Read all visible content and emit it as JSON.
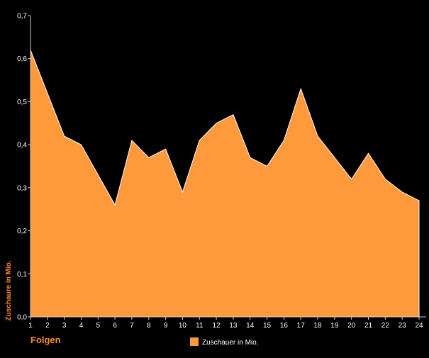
{
  "chart_data": {
    "type": "area",
    "categories": [
      "1",
      "2",
      "3",
      "4",
      "5",
      "6",
      "7",
      "8",
      "9",
      "10",
      "11",
      "12",
      "13",
      "14",
      "15",
      "16",
      "17",
      "18",
      "19",
      "20",
      "21",
      "22",
      "23",
      "24"
    ],
    "series": [
      {
        "name": "Zuschauer in Mio.",
        "color": "#ff9a3c",
        "values": [
          0.62,
          0.52,
          0.42,
          0.4,
          0.33,
          0.26,
          0.41,
          0.37,
          0.39,
          0.29,
          0.41,
          0.45,
          0.47,
          0.37,
          0.35,
          0.41,
          0.53,
          0.42,
          0.37,
          0.32,
          0.38,
          0.32,
          0.29,
          0.27
        ]
      }
    ],
    "x_label": "Folgen",
    "y_label": "Zuschaure in Mio.",
    "ylim": [
      0,
      0.7
    ],
    "yticks": [
      {
        "value": 0,
        "label": "0,0"
      },
      {
        "value": 0.1,
        "label": "0,1"
      },
      {
        "value": 0.2,
        "label": "0,2"
      },
      {
        "value": 0.3,
        "label": "0,3"
      },
      {
        "value": 0.4,
        "label": "0,4"
      },
      {
        "value": 0.5,
        "label": "0,5"
      },
      {
        "value": 0.6,
        "label": "0,6"
      },
      {
        "value": 0.7,
        "label": "0,7"
      }
    ],
    "grid": false
  }
}
